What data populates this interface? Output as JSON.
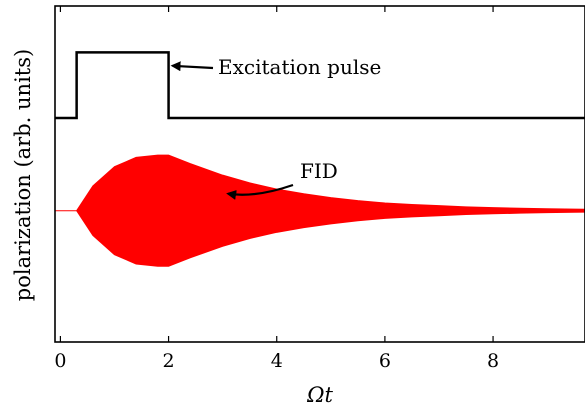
{
  "chart_data": {
    "type": "line",
    "xlabel": "Ωt",
    "ylabel": "polarization (arb. units)",
    "xlim": [
      -0.1,
      9.7
    ],
    "x_ticks": [
      "0",
      "2",
      "4",
      "6",
      "8"
    ],
    "x_tick_values": [
      0,
      2,
      4,
      6,
      8
    ],
    "y_ticks": [],
    "grid": false,
    "ylim_arb": [
      -1.7,
      2.65
    ],
    "series": [
      {
        "role": "excitation-pulse",
        "color": "#000000",
        "x": [
          -0.1,
          0.3,
          0.3,
          2.0,
          2.0,
          9.7
        ],
        "y": [
          1.2,
          1.2,
          2.05,
          2.05,
          1.2,
          1.2
        ]
      },
      {
        "role": "FID",
        "color": "#ff0000",
        "envelope_x": [
          -0.1,
          0.0,
          0.3,
          0.6,
          1.0,
          1.4,
          1.8,
          2.0,
          2.4,
          3.0,
          3.5,
          4.0,
          4.5,
          5.0,
          5.5,
          6.0,
          6.5,
          7.0,
          7.5,
          8.0,
          8.5,
          9.0,
          9.5,
          9.7
        ],
        "envelope_y": [
          0.0,
          0.0,
          0.0,
          0.32,
          0.57,
          0.69,
          0.72,
          0.72,
          0.61,
          0.46,
          0.36,
          0.28,
          0.22,
          0.17,
          0.13,
          0.1,
          0.08,
          0.065,
          0.05,
          0.04,
          0.032,
          0.025,
          0.02,
          0.018
        ]
      }
    ],
    "annotations": [
      {
        "text": "Excitation pulse",
        "arrow_to": {
          "x": 2.0,
          "y": 1.85
        }
      },
      {
        "text": "FID",
        "arrow_to": {
          "x": 3.1,
          "y": 0.22
        }
      }
    ]
  }
}
